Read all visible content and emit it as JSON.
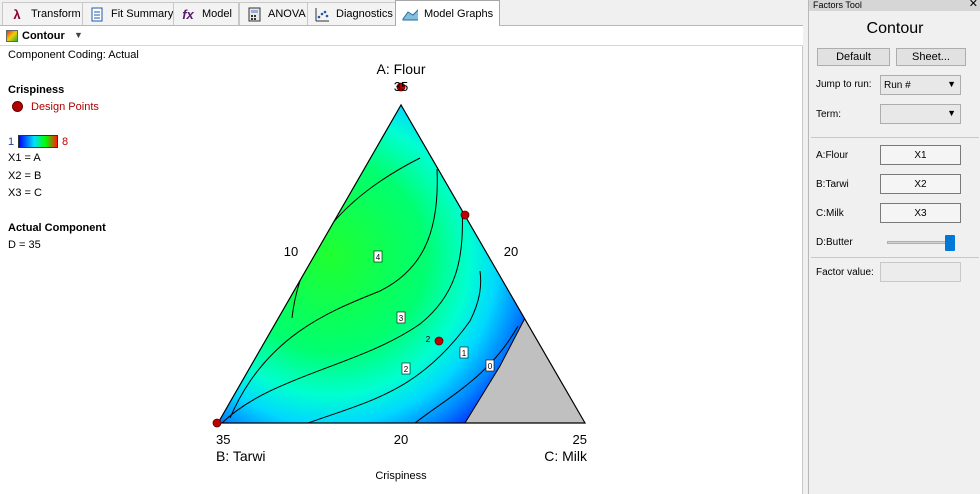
{
  "tabs": [
    {
      "label": "Transform",
      "icon": "lambda-icon"
    },
    {
      "label": "Fit Summary",
      "icon": "document-icon"
    },
    {
      "label": "Model",
      "icon": "fx-icon"
    },
    {
      "label": "ANOVA",
      "icon": "calculator-icon"
    },
    {
      "label": "Diagnostics",
      "icon": "scatter-icon"
    },
    {
      "label": "Model Graphs",
      "icon": "surface-icon"
    }
  ],
  "active_tab": "Model Graphs",
  "graph_type": "Contour",
  "coding": "Component Coding: Actual",
  "legend": {
    "response": "Crispiness",
    "design_points": "Design Points",
    "scale_min": "1",
    "scale_max": "8",
    "x1": "X1 = A",
    "x2": "X2 = B",
    "x3": "X3 = C"
  },
  "actual_component": {
    "title": "Actual Component",
    "value": "D = 35"
  },
  "chart_data": {
    "type": "contour",
    "subtype": "ternary",
    "xlabel": "Crispiness",
    "vertices": {
      "top": "A: Flour",
      "left": "B: Tarwi",
      "right": "C: Milk"
    },
    "tick_labels": {
      "top": "35",
      "left_bottom": "35",
      "bottom_mid": "20",
      "right_bottom": "25",
      "left_side": "10",
      "right_side": "20"
    },
    "contour_levels": [
      "4",
      "3",
      "2",
      "2",
      "1",
      "0"
    ],
    "color_scale": [
      "#0000ff",
      "#00e8ff",
      "#00ff40"
    ],
    "design_point_color": "#c00000",
    "infeasible_color": "#c0c0c0"
  },
  "factors_tool": {
    "header": "Factors Tool",
    "title": "Contour",
    "default_label": "Default",
    "sheet_label": "Sheet...",
    "jump_label": "Jump to run:",
    "jump_value": "Run #",
    "term_label": "Term:",
    "term_value": "",
    "factors": [
      {
        "label": "A:Flour",
        "value": "X1"
      },
      {
        "label": "B:Tarwi",
        "value": "X2"
      },
      {
        "label": "C:Milk",
        "value": "X3"
      }
    ],
    "slider_label": "D:Butter",
    "slider_fraction": 1.0,
    "factor_value_label": "Factor value:",
    "factor_value": ""
  }
}
